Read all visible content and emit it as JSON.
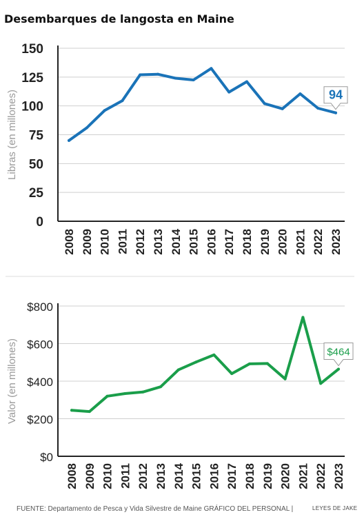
{
  "title": "Desembarques de langosta en Maine",
  "chart_data": [
    {
      "type": "line",
      "ylabel": "Libras (en millones)",
      "xlabel": "",
      "categories": [
        "2008",
        "2009",
        "2010",
        "2011",
        "2012",
        "2013",
        "2014",
        "2015",
        "2016",
        "2017",
        "2018",
        "2019",
        "2020",
        "2021",
        "2022",
        "2023"
      ],
      "series": [
        {
          "values": [
            70,
            81,
            96,
            104.5,
            127,
            127.5,
            124,
            122.5,
            132.5,
            112,
            121,
            102,
            97.5,
            110.5,
            98,
            94
          ],
          "color": "#1a73b8"
        }
      ],
      "ylim": [
        0,
        150
      ],
      "yticks": [
        0,
        25,
        50,
        75,
        100,
        125,
        150
      ],
      "ytick_labels": [
        "0",
        "25",
        "50",
        "75",
        "100",
        "125",
        "150"
      ],
      "callout": {
        "label": "94",
        "color": "#1a73b8"
      },
      "grid": true
    },
    {
      "type": "line",
      "ylabel": "Valor (en millones)",
      "xlabel": "",
      "categories": [
        "2008",
        "2009",
        "2010",
        "2011",
        "2012",
        "2013",
        "2014",
        "2015",
        "2016",
        "2017",
        "2018",
        "2019",
        "2020",
        "2021",
        "2022",
        "2023"
      ],
      "series": [
        {
          "values": [
            245,
            238,
            320,
            334,
            342,
            370,
            460,
            502,
            540,
            440,
            492,
            494,
            412,
            740,
            388,
            464
          ],
          "color": "#1a9e4a"
        }
      ],
      "ylim": [
        0,
        800
      ],
      "yticks": [
        0,
        200,
        400,
        600,
        800
      ],
      "ytick_labels": [
        "$0",
        "$200",
        "$400",
        "$600",
        "$800"
      ],
      "callout": {
        "label": "$464",
        "color": "#1a9e4a"
      },
      "grid": true
    }
  ],
  "footer": {
    "source": "FUENTE: Departamento de Pesca y Vida Silvestre de Maine GRÁFICO DEL PERSONAL |",
    "credit": "LEYES DE JAKE"
  }
}
